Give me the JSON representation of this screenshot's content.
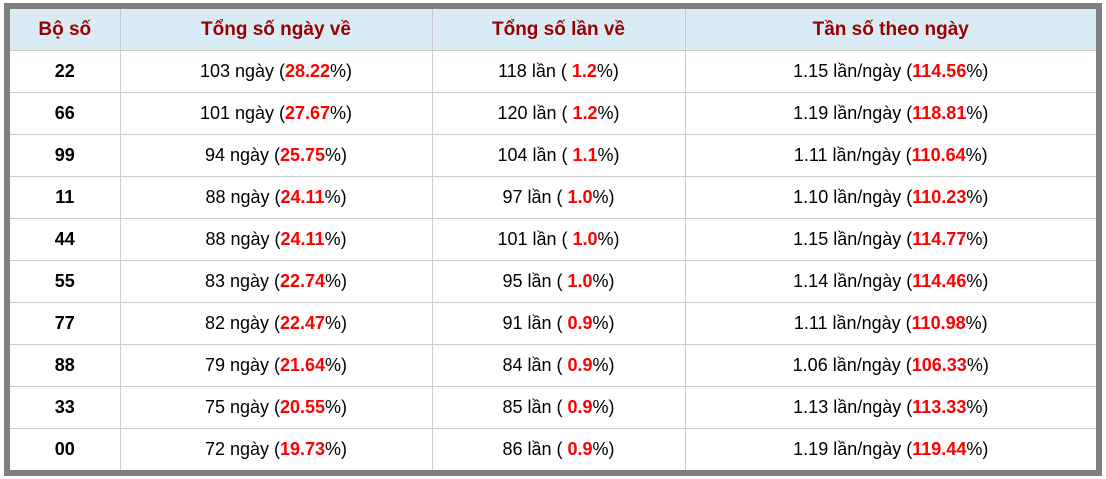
{
  "colors": {
    "header_background": "#d9ecf6",
    "header_text": "#990000",
    "highlight_value": "#ff0000",
    "outer_border": "#7f7f7f",
    "cell_border": "#cccccc",
    "body_text": "#000000"
  },
  "table": {
    "columns": [
      {
        "label": "Bộ số"
      },
      {
        "label": "Tổng số ngày về"
      },
      {
        "label": "Tổng số lần về"
      },
      {
        "label": "Tần số theo ngày"
      }
    ],
    "rows": [
      {
        "pair": "22",
        "days": {
          "prefix": "103 ngày (",
          "value": "28.22",
          "suffix": "%)"
        },
        "times": {
          "prefix": "118 lần ( ",
          "value": "1.2",
          "suffix": "%)"
        },
        "freq": {
          "prefix": "1.15 lần/ngày (",
          "value": "114.56",
          "suffix": "%)"
        }
      },
      {
        "pair": "66",
        "days": {
          "prefix": "101 ngày (",
          "value": "27.67",
          "suffix": "%)"
        },
        "times": {
          "prefix": "120 lần ( ",
          "value": "1.2",
          "suffix": "%)"
        },
        "freq": {
          "prefix": "1.19 lần/ngày (",
          "value": "118.81",
          "suffix": "%)"
        }
      },
      {
        "pair": "99",
        "days": {
          "prefix": "94 ngày (",
          "value": "25.75",
          "suffix": "%)"
        },
        "times": {
          "prefix": "104 lần ( ",
          "value": "1.1",
          "suffix": "%)"
        },
        "freq": {
          "prefix": "1.11 lần/ngày (",
          "value": "110.64",
          "suffix": "%)"
        }
      },
      {
        "pair": "11",
        "days": {
          "prefix": "88 ngày (",
          "value": "24.11",
          "suffix": "%)"
        },
        "times": {
          "prefix": "97 lần ( ",
          "value": "1.0",
          "suffix": "%)"
        },
        "freq": {
          "prefix": "1.10 lần/ngày (",
          "value": "110.23",
          "suffix": "%)"
        }
      },
      {
        "pair": "44",
        "days": {
          "prefix": "88 ngày (",
          "value": "24.11",
          "suffix": "%)"
        },
        "times": {
          "prefix": "101 lần ( ",
          "value": "1.0",
          "suffix": "%)"
        },
        "freq": {
          "prefix": "1.15 lần/ngày (",
          "value": "114.77",
          "suffix": "%)"
        }
      },
      {
        "pair": "55",
        "days": {
          "prefix": "83 ngày (",
          "value": "22.74",
          "suffix": "%)"
        },
        "times": {
          "prefix": "95 lần ( ",
          "value": "1.0",
          "suffix": "%)"
        },
        "freq": {
          "prefix": "1.14 lần/ngày (",
          "value": "114.46",
          "suffix": "%)"
        }
      },
      {
        "pair": "77",
        "days": {
          "prefix": "82 ngày (",
          "value": "22.47",
          "suffix": "%)"
        },
        "times": {
          "prefix": "91 lần ( ",
          "value": "0.9",
          "suffix": "%)"
        },
        "freq": {
          "prefix": "1.11 lần/ngày (",
          "value": "110.98",
          "suffix": "%)"
        }
      },
      {
        "pair": "88",
        "days": {
          "prefix": "79 ngày (",
          "value": "21.64",
          "suffix": "%)"
        },
        "times": {
          "prefix": "84 lần ( ",
          "value": "0.9",
          "suffix": "%)"
        },
        "freq": {
          "prefix": "1.06 lần/ngày (",
          "value": "106.33",
          "suffix": "%)"
        }
      },
      {
        "pair": "33",
        "days": {
          "prefix": "75 ngày (",
          "value": "20.55",
          "suffix": "%)"
        },
        "times": {
          "prefix": "85 lần ( ",
          "value": "0.9",
          "suffix": "%)"
        },
        "freq": {
          "prefix": "1.13 lần/ngày (",
          "value": "113.33",
          "suffix": "%)"
        }
      },
      {
        "pair": "00",
        "days": {
          "prefix": "72 ngày (",
          "value": "19.73",
          "suffix": "%)"
        },
        "times": {
          "prefix": "86 lần ( ",
          "value": "0.9",
          "suffix": "%)"
        },
        "freq": {
          "prefix": "1.19 lần/ngày (",
          "value": "119.44",
          "suffix": "%)"
        }
      }
    ]
  }
}
